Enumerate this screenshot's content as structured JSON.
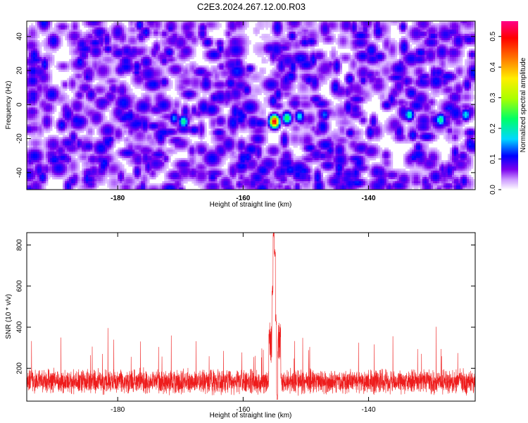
{
  "title": "C2E3.2024.267.12.00.R03",
  "chart_data": [
    {
      "type": "heatmap",
      "title": "C2E3.2024.267.12.00.R03",
      "xlabel": "Height of straight line (km)",
      "ylabel": "Frequency (Hz)",
      "xlim": [
        -194.5,
        -123
      ],
      "ylim": [
        -50,
        49
      ],
      "xticks": [
        -180,
        -160,
        -140
      ],
      "yticks": [
        -40,
        -20,
        0,
        20,
        40
      ],
      "colorbar": {
        "label": "Normalized spectral amplitude",
        "range": [
          0,
          0.55
        ],
        "ticks": [
          0.0,
          0.1,
          0.2,
          0.3,
          0.4,
          0.5
        ],
        "colors": [
          "#ffffff",
          "#cc99ff",
          "#7a00ee",
          "#0000ff",
          "#00d8ff",
          "#00ff66",
          "#aaff00",
          "#ffee00",
          "#ff7700",
          "#ff0000",
          "#ff0088"
        ]
      },
      "peaks": [
        {
          "x": -155.0,
          "y": -10,
          "value": 0.52
        },
        {
          "x": -153.0,
          "y": -8,
          "value": 0.25
        },
        {
          "x": -151.0,
          "y": -7,
          "value": 0.18
        },
        {
          "x": -169.5,
          "y": -10,
          "value": 0.22
        },
        {
          "x": -171.0,
          "y": -8,
          "value": 0.15
        },
        {
          "x": -133.5,
          "y": -6,
          "value": 0.2
        },
        {
          "x": -128.5,
          "y": -9,
          "value": 0.22
        },
        {
          "x": -124.5,
          "y": -6,
          "value": 0.18
        },
        {
          "x": -147.0,
          "y": -6,
          "value": 0.14
        },
        {
          "x": -186.0,
          "y": 25,
          "value": 0.12
        },
        {
          "x": -143.0,
          "y": 15,
          "value": 0.12
        },
        {
          "x": -142.0,
          "y": -40,
          "value": 0.11
        }
      ],
      "background_level": 0.08
    },
    {
      "type": "line",
      "xlabel": "Height of straight line (km)",
      "ylabel": "SNR (10 * v/v)",
      "xlim": [
        -194.5,
        -123
      ],
      "ylim": [
        40,
        860
      ],
      "xticks": [
        -180,
        -160,
        -140
      ],
      "yticks": [
        200,
        400,
        600,
        800
      ],
      "color": "#ee1c1c",
      "baseline": 135,
      "noise_amplitude": 70,
      "sample_step_km": 0.02,
      "peaks": [
        {
          "x": -155.3,
          "y": 580
        },
        {
          "x": -155.15,
          "y": 860
        },
        {
          "x": -154.95,
          "y": 760
        },
        {
          "x": -154.75,
          "y": 440
        },
        {
          "x": -154.6,
          "y": 60
        }
      ]
    }
  ]
}
